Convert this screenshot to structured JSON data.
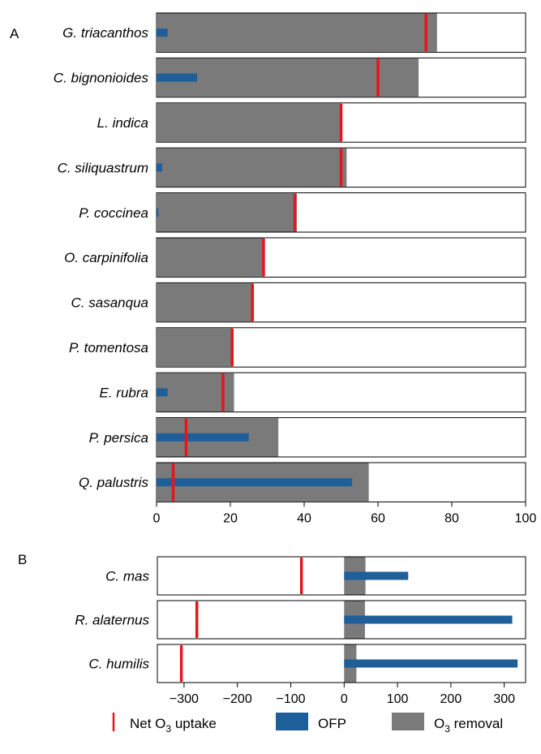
{
  "colors": {
    "o3_removal": "#7a7a7a",
    "ofp": "#1f5f99",
    "net_uptake": "#e8141c",
    "frame": "#000000"
  },
  "legend": {
    "net_uptake": "Net O",
    "net_uptake_sub": "3",
    "net_uptake_tail": " uptake",
    "ofp": "OFP",
    "o3_removal": "O",
    "o3_removal_sub": "3",
    "o3_removal_tail": " removal"
  },
  "chart_data": [
    {
      "type": "bar",
      "panel_label": "A",
      "xlim": [
        0,
        100
      ],
      "xticks": [
        0,
        20,
        40,
        60,
        80,
        100
      ],
      "categories": [
        "G. triacanthos",
        "C. bignonioides",
        "L. indica",
        "C. siliquastrum",
        "P. coccinea",
        "O. carpinifolia",
        "C. sasanqua",
        "P. tomentosa",
        "E. rubra",
        "P. persica",
        "Q. palustris"
      ],
      "series": [
        {
          "name": "O3 removal",
          "values": [
            76,
            71,
            50,
            51.5,
            38,
            29,
            26,
            20.5,
            21,
            33,
            57.5
          ]
        },
        {
          "name": "OFP",
          "values": [
            3,
            11,
            0,
            1.5,
            0.5,
            0,
            0,
            0,
            3,
            25,
            53
          ]
        },
        {
          "name": "Net O3 uptake",
          "values": [
            73,
            60,
            50,
            50,
            37.5,
            29,
            26,
            20.5,
            18,
            8,
            4.5
          ]
        }
      ]
    },
    {
      "type": "bar",
      "panel_label": "B",
      "xlim": [
        -350,
        340
      ],
      "xticks": [
        -300,
        -200,
        -100,
        0,
        100,
        200,
        300
      ],
      "xtick_labels": [
        "−300",
        "−200",
        "−100",
        "0",
        "100",
        "200",
        "300"
      ],
      "categories": [
        "C. mas",
        "R. alaternus",
        "C. humilis"
      ],
      "series": [
        {
          "name": "O3 removal",
          "values": [
            40,
            39,
            23
          ]
        },
        {
          "name": "OFP",
          "values": [
            120,
            315,
            325
          ]
        },
        {
          "name": "Net O3 uptake",
          "values": [
            -80,
            -276,
            -305
          ]
        }
      ]
    }
  ]
}
